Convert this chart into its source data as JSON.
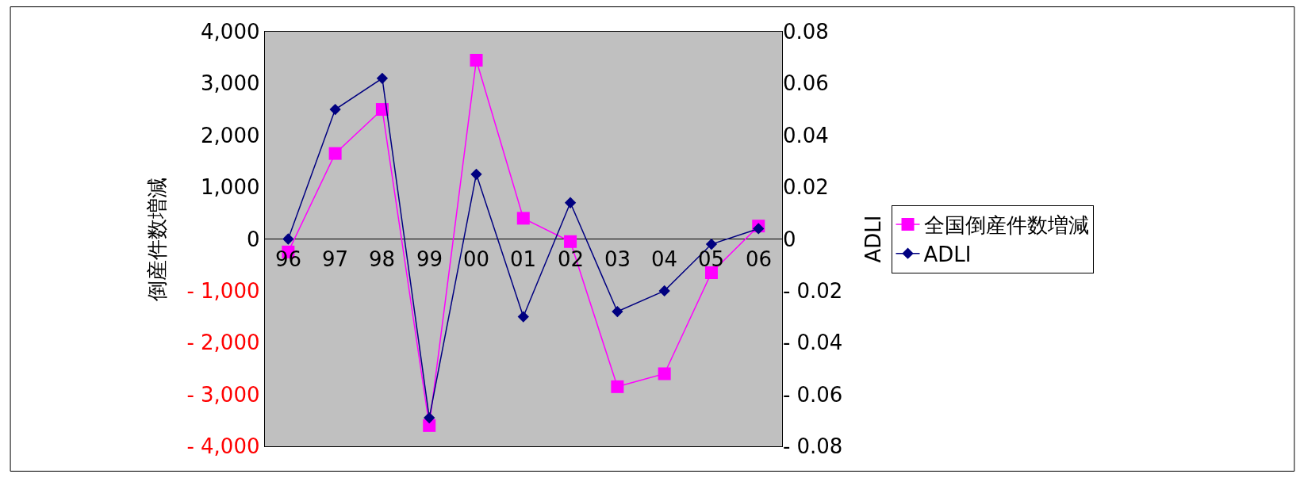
{
  "chart_data": {
    "type": "line",
    "ylabel": "倒産件数増減",
    "y2label": "ADLI",
    "categories": [
      "96",
      "97",
      "98",
      "99",
      "00",
      "01",
      "02",
      "03",
      "04",
      "05",
      "06"
    ],
    "series": [
      {
        "name": "全国倒産件数増減",
        "color": "#ff00ff",
        "marker": "square",
        "values": [
          -250,
          1650,
          2500,
          -3600,
          3450,
          400,
          -50,
          -2850,
          -2600,
          -650,
          250
        ]
      },
      {
        "name": "ADLI",
        "color": "#000080",
        "marker": "diamond",
        "axis": "y2",
        "values": [
          0,
          0.05,
          0.062,
          -0.069,
          0.025,
          -0.03,
          0.014,
          -0.028,
          -0.02,
          -0.002,
          0.004
        ]
      }
    ],
    "ylim": [
      -4000,
      4000
    ],
    "yticks": [
      {
        "value": -4000,
        "label": "- 4,000"
      },
      {
        "value": -3000,
        "label": "- 3,000"
      },
      {
        "value": -2000,
        "label": "- 2,000"
      },
      {
        "value": -1000,
        "label": "- 1,000"
      },
      0,
      {
        "value": 1000,
        "label": "1,000"
      },
      {
        "value": 2000,
        "label": "2,000"
      },
      {
        "value": 3000,
        "label": "3,000"
      },
      {
        "value": 4000,
        "label": "4,000"
      }
    ],
    "y2lim": [
      -0.08,
      0.08
    ],
    "y2ticks": [
      {
        "value": -0.08,
        "label": "- 0.08"
      },
      {
        "value": -0.06,
        "label": "- 0.06"
      },
      {
        "value": -0.04,
        "label": "- 0.04"
      },
      {
        "value": -0.02,
        "label": "- 0.02"
      },
      0,
      {
        "value": 0.02,
        "label": "0.02"
      },
      {
        "value": 0.04,
        "label": "0.04"
      },
      {
        "value": 0.06,
        "label": "0.06"
      },
      {
        "value": 0.08,
        "label": "0.08"
      }
    ],
    "grid": false,
    "legend": "right",
    "line_style": "solid"
  }
}
